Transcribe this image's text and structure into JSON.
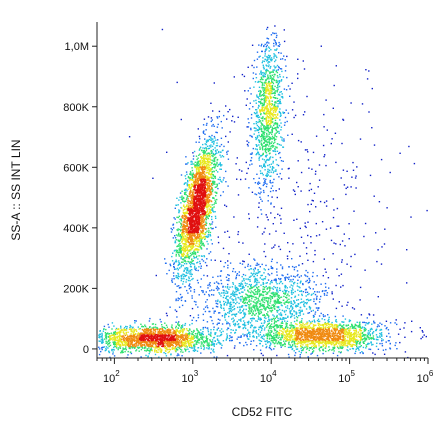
{
  "chart_data": {
    "type": "scatter",
    "subtype": "flow-cytometry-density-dot-plot",
    "title": "",
    "xlabel": "CD52 FITC",
    "ylabel": "SS-A :: SS INT LIN",
    "x_scale": "log",
    "xlim": [
      60,
      1000000
    ],
    "ylim": [
      -30000,
      1080000
    ],
    "x_ticks": [
      {
        "value": 100,
        "base": "10",
        "exp": "2"
      },
      {
        "value": 1000,
        "base": "10",
        "exp": "3"
      },
      {
        "value": 10000,
        "base": "10",
        "exp": "4"
      },
      {
        "value": 100000,
        "base": "10",
        "exp": "5"
      },
      {
        "value": 1000000,
        "base": "10",
        "exp": "6"
      }
    ],
    "y_ticks": [
      {
        "value": 0,
        "label": "0"
      },
      {
        "value": 200000,
        "label": "200K"
      },
      {
        "value": 400000,
        "label": "400K"
      },
      {
        "value": 600000,
        "label": "600K"
      },
      {
        "value": 800000,
        "label": "800K"
      },
      {
        "value": 1000000,
        "label": "1,0M"
      }
    ],
    "grid": false,
    "legend": "none",
    "colormap": [
      "#1020c8",
      "#1e6cf0",
      "#20c0e0",
      "#30e070",
      "#e8e820",
      "#f08a10",
      "#e01010"
    ],
    "populations": [
      {
        "log_x": 3.05,
        "log_x_sd": 0.13,
        "y": 470000,
        "y_sd": 110000,
        "weight": 0.28,
        "corr": 0.6
      },
      {
        "log_x": 3.95,
        "log_x_sd": 0.1,
        "y": 780000,
        "y_sd": 120000,
        "weight": 0.12,
        "corr": 0.2
      },
      {
        "log_x": 2.5,
        "log_x_sd": 0.4,
        "y": 35000,
        "y_sd": 22000,
        "weight": 0.2,
        "corr": 0.0
      },
      {
        "log_x": 4.65,
        "log_x_sd": 0.4,
        "y": 45000,
        "y_sd": 25000,
        "weight": 0.18,
        "corr": 0.0
      },
      {
        "log_x": 3.9,
        "log_x_sd": 0.4,
        "y": 160000,
        "y_sd": 60000,
        "weight": 0.14,
        "corr": 0.0
      },
      {
        "log_x": 4.4,
        "log_x_sd": 0.7,
        "y": 450000,
        "y_sd": 250000,
        "weight": 0.04,
        "corr": 0.0
      }
    ]
  }
}
